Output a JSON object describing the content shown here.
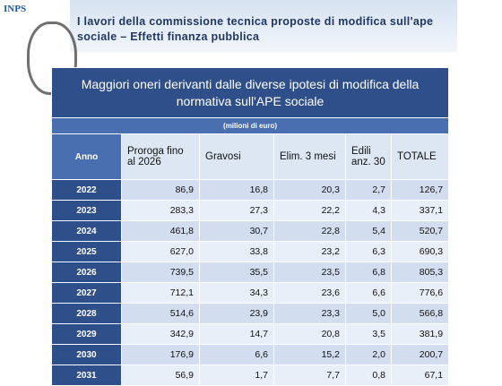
{
  "header": {
    "logo": "INPS",
    "title": "I lavori della commissione tecnica  proposte di modifica sull'ape sociale – Effetti finanza pubblica"
  },
  "table": {
    "title": "Maggiori oneri derivanti dalle diverse ipotesi di modifica della normativa sull'APE sociale",
    "subtitle": "(milioni di euro)",
    "columns": [
      "Anno",
      "Proroga fino al 2026",
      "Gravosi",
      "Elim. 3 mesi",
      "Edili anz. 30",
      "TOTALE"
    ],
    "rows": [
      [
        "2022",
        "86,9",
        "16,8",
        "20,3",
        "2,7",
        "126,7"
      ],
      [
        "2023",
        "283,3",
        "27,3",
        "22,2",
        "4,3",
        "337,1"
      ],
      [
        "2024",
        "461,8",
        "30,7",
        "22,8",
        "5,4",
        "520,7"
      ],
      [
        "2025",
        "627,0",
        "33,8",
        "23,2",
        "6,3",
        "690,3"
      ],
      [
        "2026",
        "739,5",
        "35,5",
        "23,5",
        "6,8",
        "805,3"
      ],
      [
        "2027",
        "712,1",
        "34,3",
        "23,6",
        "6,6",
        "776,6"
      ],
      [
        "2028",
        "514,6",
        "23,9",
        "23,3",
        "5,0",
        "566,8"
      ],
      [
        "2029",
        "342,9",
        "14,7",
        "20,8",
        "3,5",
        "381,9"
      ],
      [
        "2030",
        "176,9",
        "6,6",
        "15,2",
        "2,0",
        "200,7"
      ],
      [
        "2031",
        "56,9",
        "1,7",
        "7,7",
        "0,8",
        "67,1"
      ]
    ]
  }
}
